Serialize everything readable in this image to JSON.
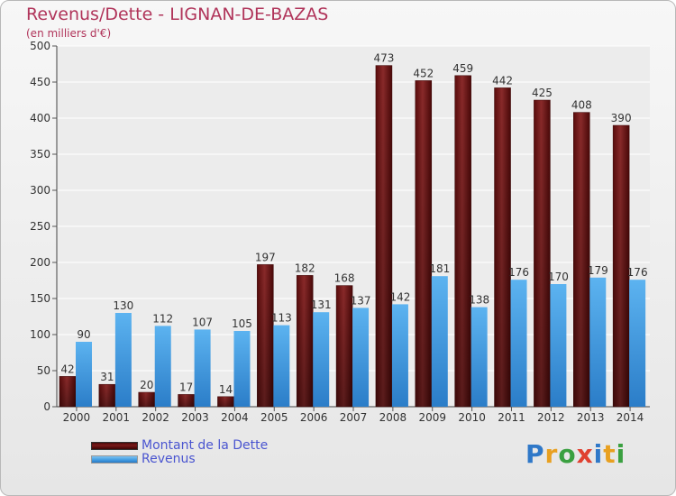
{
  "title": "Revenus/Dette - LIGNAN-DE-BAZAS",
  "subtitle": "(en milliers d'€)",
  "legend": {
    "debt_label": "Montant de la Dette",
    "revenue_label": "Revenus"
  },
  "logo": {
    "text": "Proxiti",
    "letters": [
      "P",
      "r",
      "o",
      "x",
      "i",
      "t",
      "i"
    ],
    "colors": [
      "#2f78c8",
      "#e8a020",
      "#3aa040",
      "#e04030",
      "#2f78c8",
      "#e8a020",
      "#3aa040"
    ]
  },
  "colors": {
    "debt": "#7a1f1f",
    "revenue": "#4aa3e8",
    "title": "#b0345a",
    "legend_text": "#4a55d0"
  },
  "chart_data": {
    "type": "bar",
    "categories": [
      "2000",
      "2001",
      "2002",
      "2003",
      "2004",
      "2005",
      "2006",
      "2007",
      "2008",
      "2009",
      "2010",
      "2011",
      "2012",
      "2013",
      "2014"
    ],
    "series": [
      {
        "name": "Montant de la Dette",
        "values": [
          42,
          31,
          20,
          17,
          14,
          197,
          182,
          168,
          473,
          452,
          459,
          442,
          425,
          408,
          390
        ]
      },
      {
        "name": "Revenus",
        "values": [
          90,
          130,
          112,
          107,
          105,
          113,
          131,
          137,
          142,
          181,
          138,
          176,
          170,
          179,
          176
        ]
      }
    ],
    "ylim": [
      0,
      500
    ],
    "yticks": [
      0,
      50,
      100,
      150,
      200,
      250,
      300,
      350,
      400,
      450,
      500
    ],
    "grid": true,
    "legend_position": "bottom-left"
  }
}
